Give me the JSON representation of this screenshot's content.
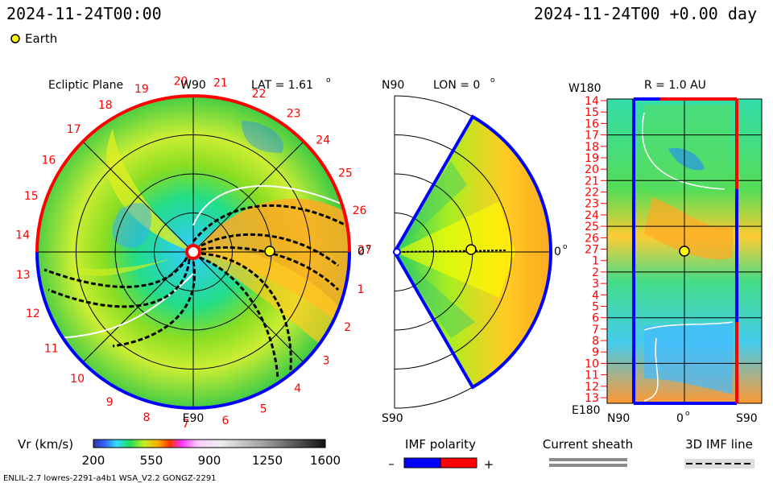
{
  "header": {
    "timestamp_left": "2024-11-24T00:00",
    "timestamp_right": "2024-11-24T00 +0.00 day",
    "legend_label": "Earth"
  },
  "colors": {
    "earth_marker": "#ffff00",
    "polarity_negative": "#0000ff",
    "polarity_positive": "#ff0000",
    "sheath": "#8c8c8c"
  },
  "chart_data": [
    {
      "type": "heatmap",
      "panel": "ecliptic",
      "title": "Ecliptic Plane",
      "top_label": "W90",
      "bottom_label": "E90",
      "right_label": "0",
      "lat_label": "LAT = 1.61",
      "carrington_ticks": [
        "19",
        "20",
        "21",
        "22",
        "23",
        "24",
        "25",
        "26",
        "27",
        "1",
        "2",
        "3",
        "4",
        "5",
        "6",
        "7",
        "8",
        "9",
        "10",
        "11",
        "12",
        "13",
        "14",
        "15",
        "16",
        "17",
        "18"
      ]
    },
    {
      "type": "heatmap",
      "panel": "meridional",
      "top_label": "N90",
      "bottom_label": "S90",
      "right_label": "0",
      "lon_label": "LON = 0"
    },
    {
      "type": "heatmap",
      "panel": "radial",
      "r_label": "R = 1.0 AU",
      "top_left_label": "W180",
      "bottom_left_label": "E180",
      "bottom_labels": [
        "N90",
        "0",
        "S90"
      ],
      "y_ticks": [
        "14",
        "15",
        "16",
        "17",
        "18",
        "19",
        "20",
        "21",
        "22",
        "23",
        "24",
        "25",
        "26",
        "27",
        "1",
        "2",
        "3",
        "4",
        "5",
        "6",
        "7",
        "8",
        "9",
        "10",
        "11",
        "12",
        "13"
      ]
    }
  ],
  "colorbar": {
    "label": "Vr (km/s)",
    "ticks": [
      "200",
      "550",
      "900",
      "1250",
      "1600"
    ],
    "range": [
      200,
      1600
    ]
  },
  "imf_legend": {
    "title": "IMF polarity",
    "minus": "–",
    "plus": "+"
  },
  "sheath_legend": {
    "title": "Current sheath"
  },
  "imf_line_legend": {
    "title": "3D IMF line"
  },
  "footer": {
    "run_info": "ENLIL-2.7 lowres-2291-a4b1 WSA_V2.2 GONGZ-2291"
  }
}
